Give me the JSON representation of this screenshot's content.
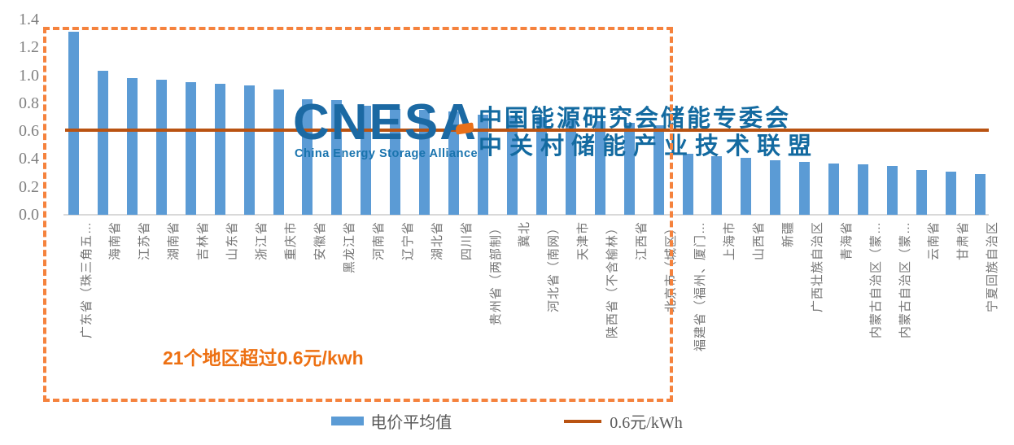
{
  "watermark": {
    "logo_text": "CNESA",
    "logo_subtext": "China Energy Storage Alliance",
    "org_line1": "中国能源研究会储能专委会",
    "org_line2": "中关村储能产业技术联盟"
  },
  "annotation": "21个地区超过0.6元/kwh",
  "legend": [
    {
      "label": "电价平均值",
      "type": "bar-swatch",
      "color": "#5B9BD5"
    },
    {
      "label": "0.6元/kWh",
      "type": "line-swatch",
      "color": "#B95312"
    }
  ],
  "colors": {
    "bar": "#5B9BD5",
    "reference_line": "#B95312",
    "highlight_box": "#F5823D",
    "annotation_text": "#ED7012",
    "watermark_blue": "#1B69A3",
    "axis_text": "#7f7f7f",
    "x_label_text": "#757575"
  },
  "chart_data": {
    "type": "bar",
    "title": "",
    "xlabel": "",
    "ylabel": "",
    "categories": [
      "广东省（珠三角五…",
      "海南省",
      "江苏省",
      "湖南省",
      "吉林省",
      "山东省",
      "浙江省",
      "重庆市",
      "安徽省",
      "黑龙江省",
      "河南省",
      "辽宁省",
      "湖北省",
      "四川省",
      "贵州省（两部制）",
      "冀北",
      "河北省（南网）",
      "天津市",
      "陕西省（不含榆林）",
      "江西省",
      "北京市（城区）",
      "福建省（福州、厦门…",
      "上海市",
      "山西省",
      "新疆",
      "广西壮族自治区",
      "青海省",
      "内蒙古自治区（蒙…",
      "内蒙古自治区（蒙…",
      "云南省",
      "甘肃省",
      "宁夏回族自治区"
    ],
    "values": [
      1.31,
      1.03,
      0.98,
      0.97,
      0.95,
      0.94,
      0.93,
      0.9,
      0.83,
      0.82,
      0.78,
      0.76,
      0.75,
      0.74,
      0.72,
      0.71,
      0.7,
      0.68,
      0.67,
      0.66,
      0.64,
      0.44,
      0.42,
      0.41,
      0.39,
      0.38,
      0.37,
      0.36,
      0.35,
      0.32,
      0.31,
      0.29
    ],
    "series_name": "电价平均值",
    "unit": "元/kWh",
    "ylim": [
      0,
      1.4
    ],
    "yticks": [
      "0.0",
      "0.2",
      "0.4",
      "0.6",
      "0.8",
      "1.0",
      "1.2",
      "1.4"
    ],
    "grid": false,
    "legend_position": "bottom",
    "reference_line": {
      "value": 0.6,
      "label": "0.6元/kWh"
    },
    "highlight_box": {
      "covers_first_n_bars": 21,
      "note": "21个地区超过0.6元/kwh"
    }
  }
}
